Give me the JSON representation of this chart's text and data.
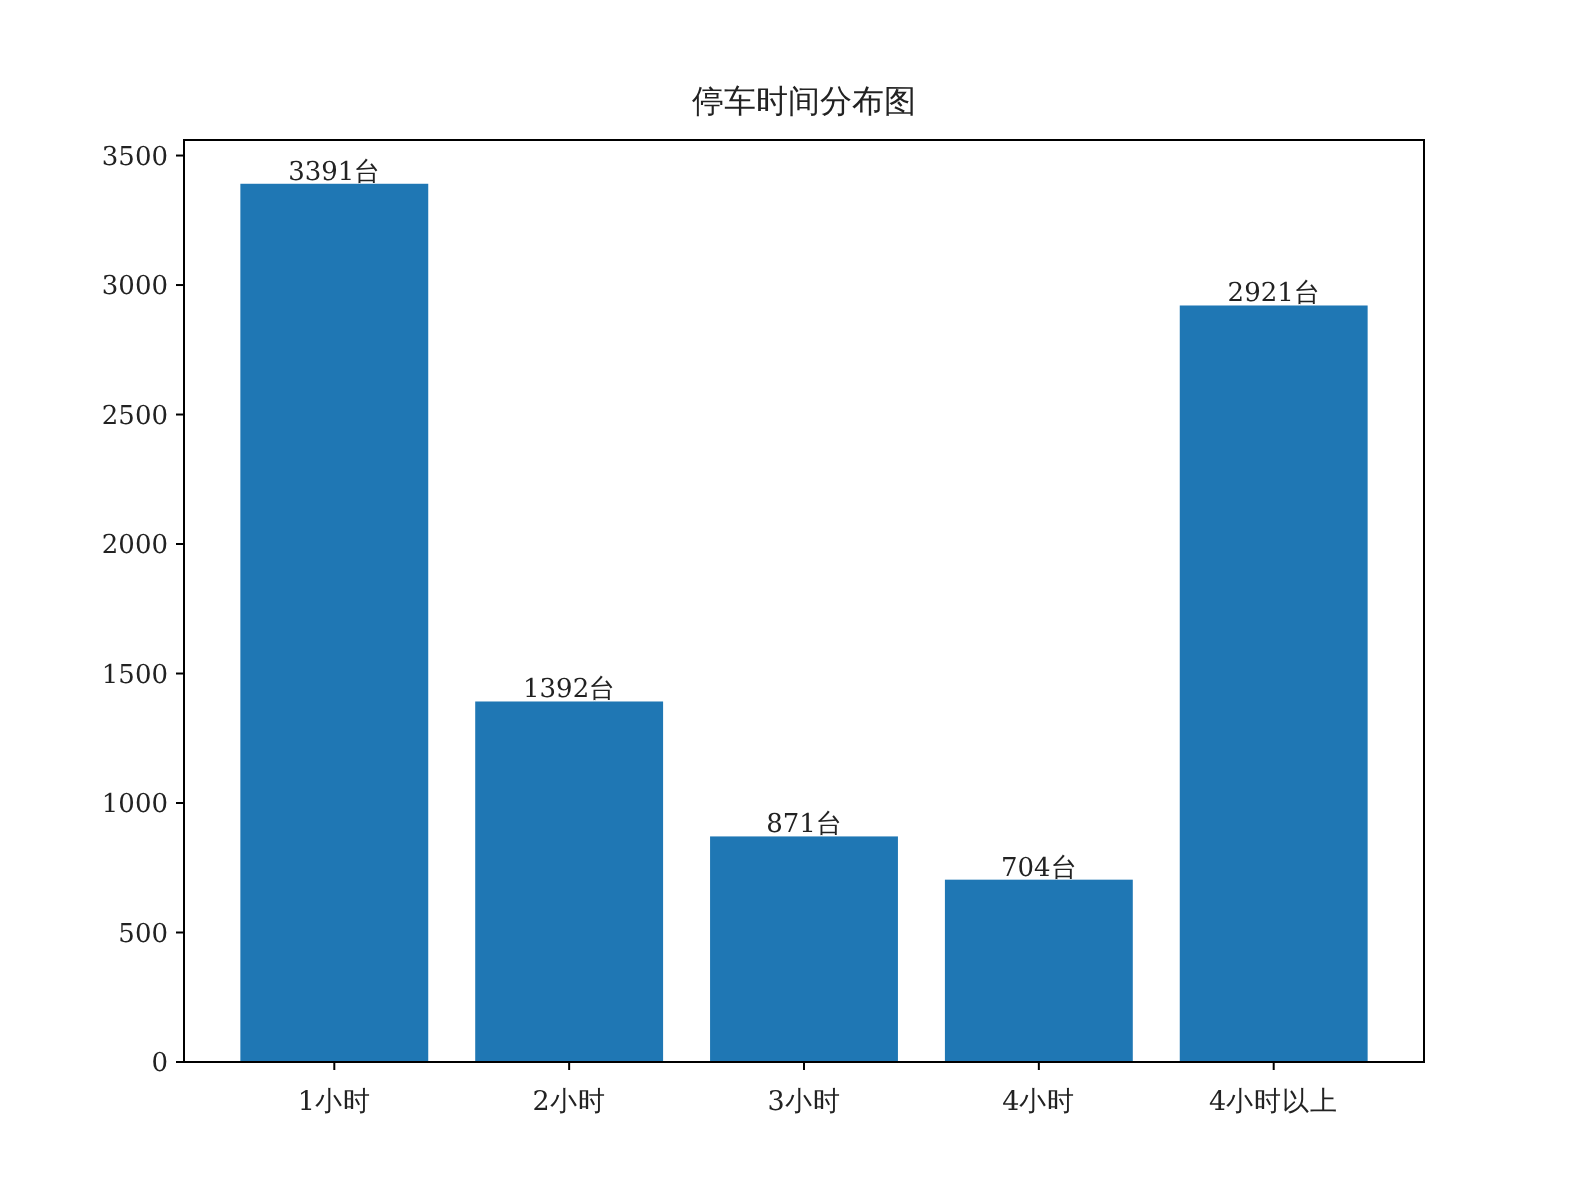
{
  "chart_data": {
    "type": "bar",
    "title": "停车时间分布图",
    "categories": [
      "1小时",
      "2小时",
      "3小时",
      "4小时",
      "4小时以上"
    ],
    "values": [
      3391,
      1392,
      871,
      704,
      2921
    ],
    "value_labels": [
      "3391台",
      "1392台",
      "871台",
      "704台",
      "2921台"
    ],
    "color": "#1f77b4",
    "ylim": [
      0,
      3560
    ],
    "yticks": [
      0,
      500,
      1000,
      1500,
      2000,
      2500,
      3000,
      3500
    ]
  }
}
